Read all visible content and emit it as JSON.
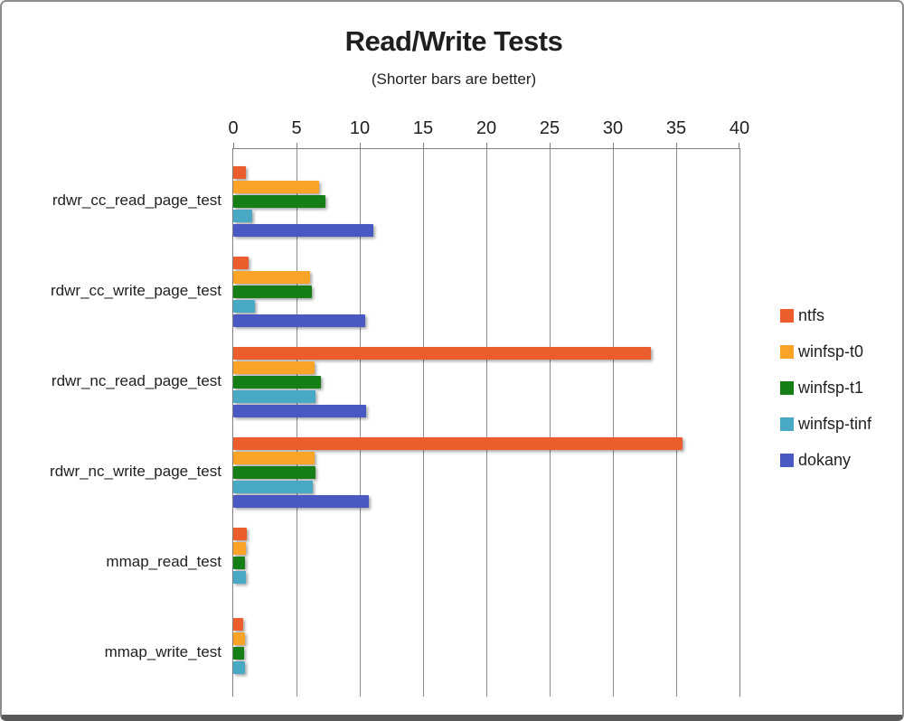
{
  "window": {
    "border_color": "#8d8d8d",
    "bottom_edge_color": "#59595b",
    "background": "#ffffff"
  },
  "chart_data": {
    "type": "bar",
    "orientation": "horizontal",
    "title": "Read/Write Tests",
    "subtitle": "(Shorter bars are better)",
    "value_axis": {
      "position": "top",
      "min": 0,
      "max": 40,
      "step": 5,
      "ticks": [
        0,
        5,
        10,
        15,
        20,
        25,
        30,
        35,
        40
      ]
    },
    "grid": "vertical",
    "legend_position": "right",
    "categories": [
      "rdwr_cc_read_page_test",
      "rdwr_cc_write_page_test",
      "rdwr_nc_read_page_test",
      "rdwr_nc_write_page_test",
      "mmap_read_test",
      "mmap_write_test"
    ],
    "series": [
      {
        "name": "ntfs",
        "color": "#EB5D2C",
        "values": [
          1.0,
          1.2,
          33.0,
          35.5,
          1.1,
          0.75
        ]
      },
      {
        "name": "winfsp-t0",
        "color": "#F9A426",
        "values": [
          6.8,
          6.1,
          6.4,
          6.4,
          1.0,
          0.9
        ]
      },
      {
        "name": "winfsp-t1",
        "color": "#157E15",
        "values": [
          7.3,
          6.2,
          6.9,
          6.5,
          0.95,
          0.85
        ]
      },
      {
        "name": "winfsp-tinf",
        "color": "#49A8C4",
        "values": [
          1.5,
          1.7,
          6.5,
          6.3,
          1.0,
          0.9
        ]
      },
      {
        "name": "dokany",
        "color": "#4A58C4",
        "values": [
          11.1,
          10.4,
          10.5,
          10.7,
          0,
          0
        ]
      }
    ]
  },
  "colors": {
    "gridline": "#8c8c8c",
    "frame": "#7f7f7f",
    "text": "#1f1f1f"
  }
}
